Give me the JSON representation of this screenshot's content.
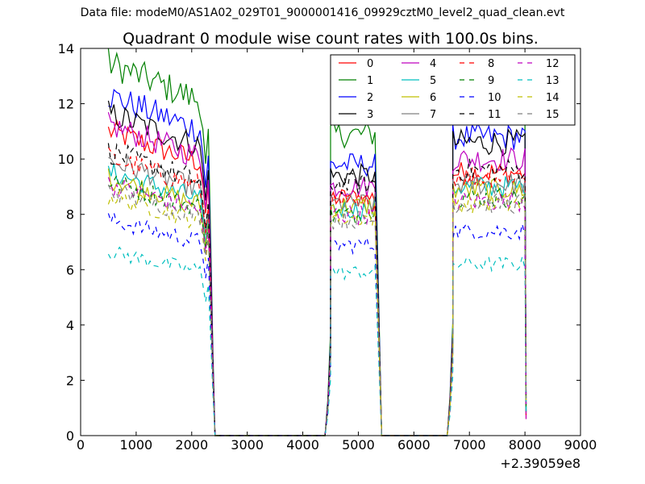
{
  "header": {
    "suptitle": "Data file: modeM0/AS1A02_029T01_9000001416_09929cztM0_level2_quad_clean.evt"
  },
  "chart_data": {
    "type": "line",
    "title": "Quadrant 0 module wise count rates with 100.0s bins.",
    "xlabel": "",
    "ylabel": "",
    "x_offset_label": "+2.39059e8",
    "xlim": [
      0,
      9000
    ],
    "ylim": [
      0,
      14
    ],
    "xticks": [
      0,
      1000,
      2000,
      3000,
      4000,
      5000,
      6000,
      7000,
      8000,
      9000
    ],
    "yticks": [
      0,
      2,
      4,
      6,
      8,
      10,
      12,
      14
    ],
    "legend_position": "top-right",
    "segments": [
      {
        "x": [
          500,
          2300
        ],
        "fall_to": 2420,
        "note": "count rates drop to zero at ~2400"
      },
      {
        "x": [
          4500,
          5300
        ],
        "rise_from": 4400,
        "fall_to": 5420
      },
      {
        "x": [
          6700,
          8000
        ],
        "rise_from": 6600,
        "fall_to": 8020
      }
    ],
    "series": [
      {
        "name": "0",
        "color": "#ff0000",
        "dash": false,
        "levels": [
          10.3,
          8.6,
          9.5
        ]
      },
      {
        "name": "1",
        "color": "#008000",
        "dash": false,
        "levels": [
          12.6,
          10.9,
          11.8
        ]
      },
      {
        "name": "2",
        "color": "#0000ff",
        "dash": false,
        "levels": [
          11.5,
          9.8,
          10.8
        ]
      },
      {
        "name": "3",
        "color": "#000000",
        "dash": false,
        "levels": [
          10.9,
          9.4,
          10.6
        ]
      },
      {
        "name": "4",
        "color": "#bf00bf",
        "dash": false,
        "levels": [
          10.5,
          9.0,
          10.0
        ]
      },
      {
        "name": "5",
        "color": "#00bfbf",
        "dash": false,
        "levels": [
          8.9,
          8.2,
          9.0
        ]
      },
      {
        "name": "6",
        "color": "#bfbf00",
        "dash": false,
        "levels": [
          8.7,
          8.3,
          8.9
        ]
      },
      {
        "name": "7",
        "color": "#808080",
        "dash": false,
        "levels": [
          9.3,
          8.4,
          9.1
        ]
      },
      {
        "name": "8",
        "color": "#ff0000",
        "dash": true,
        "levels": [
          9.4,
          8.4,
          9.4
        ]
      },
      {
        "name": "9",
        "color": "#008000",
        "dash": true,
        "levels": [
          8.6,
          8.0,
          8.6
        ]
      },
      {
        "name": "10",
        "color": "#0000ff",
        "dash": true,
        "levels": [
          7.3,
          6.9,
          7.4
        ]
      },
      {
        "name": "11",
        "color": "#000000",
        "dash": true,
        "levels": [
          9.6,
          9.1,
          9.6
        ]
      },
      {
        "name": "12",
        "color": "#bf00bf",
        "dash": true,
        "levels": [
          8.5,
          8.0,
          8.5
        ]
      },
      {
        "name": "13",
        "color": "#00bfbf",
        "dash": true,
        "levels": [
          6.2,
          5.9,
          6.2
        ]
      },
      {
        "name": "14",
        "color": "#bfbf00",
        "dash": true,
        "levels": [
          8.1,
          7.9,
          8.4
        ]
      },
      {
        "name": "15",
        "color": "#808080",
        "dash": true,
        "levels": [
          8.3,
          7.8,
          8.4
        ]
      }
    ]
  }
}
